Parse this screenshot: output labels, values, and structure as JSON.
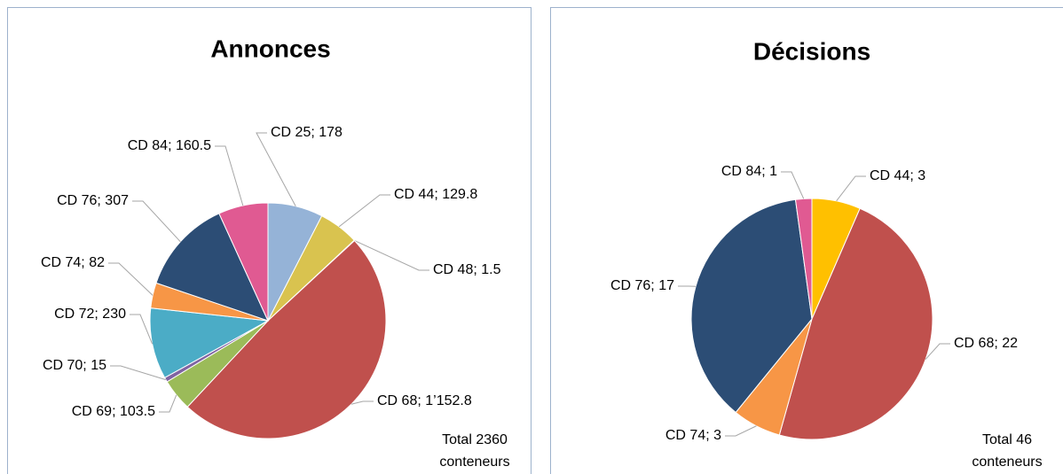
{
  "chart_data": [
    {
      "type": "pie",
      "title": "Annonces",
      "values": [
        178,
        129.8,
        1.5,
        1152.8,
        103.5,
        15,
        230,
        82,
        307,
        160.5
      ],
      "value_labels": [
        "CD 25; 178",
        "CD 44; 129.8",
        "CD 48; 1.5",
        "CD 68; 1’152.8",
        "CD 69; 103.5",
        "CD 70; 15",
        "CD 72; 230",
        "CD 74; 82",
        "CD 76; 307",
        "CD 84; 160.5"
      ],
      "colors": [
        "#95b3d7",
        "#d9c34f",
        "#7f7f7f",
        "#c0504d",
        "#9bbb59",
        "#8064a2",
        "#4bacc6",
        "#f79646",
        "#2c4d75",
        "#e05a92"
      ],
      "annotation": [
        "Total 2360",
        "conteneurs"
      ]
    },
    {
      "type": "pie",
      "title": "Décisions",
      "values": [
        3,
        22,
        3,
        17,
        1
      ],
      "value_labels": [
        "CD 44; 3",
        "CD 68; 22",
        "CD 74; 3",
        "CD 76; 17",
        "CD 84; 1"
      ],
      "colors": [
        "#ffc000",
        "#c0504d",
        "#f79646",
        "#2c4d75",
        "#e05a92"
      ],
      "annotation": [
        "Total 46",
        "conteneurs"
      ]
    }
  ]
}
